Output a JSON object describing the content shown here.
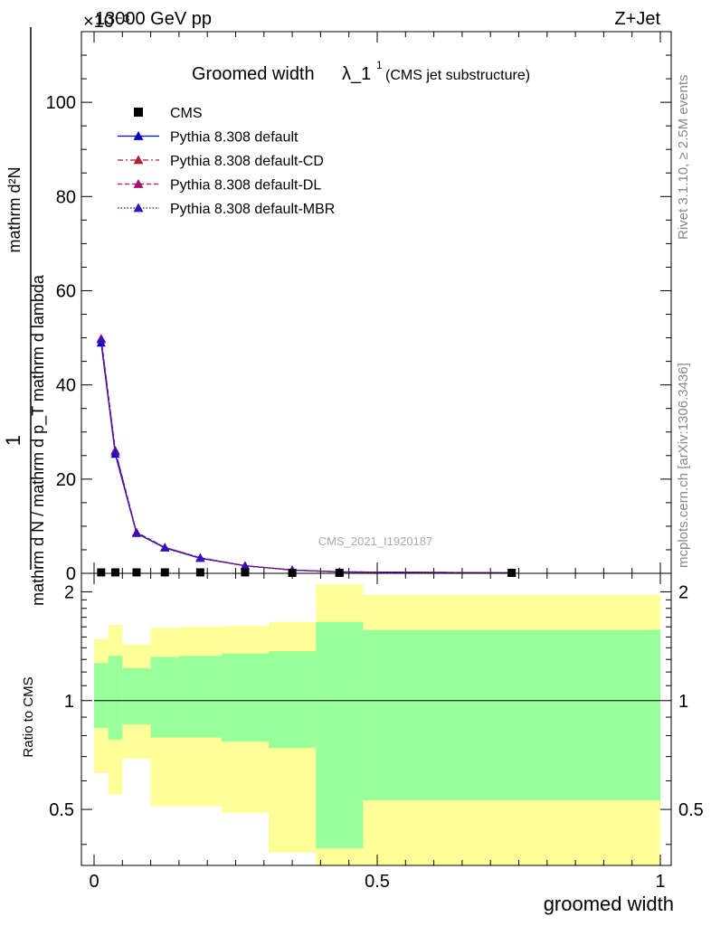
{
  "header": {
    "left": "13000 GeV pp",
    "right": "Z+Jet",
    "exponent": "×10⁻³"
  },
  "side_labels": {
    "rivet": "Rivet 3.1.10, ≥ 2.5M events",
    "mcplots": "mcplots.cern.ch [arXiv:1306.3436]"
  },
  "watermark": "CMS_2021_I1920187",
  "chart_data": [
    {
      "type": "line",
      "title": "Groomed width λ_1¹ (CMS jet substructure)",
      "title_main": "Groomed width",
      "title_lambda": "λ_1",
      "title_sup": "1",
      "title_paren": "(CMS jet substructure)",
      "ylabel_top": "1",
      "ylabel_top_den": "mathrm d N / mathrm d p_T mathrm d lambda",
      "ylabel_num": "mathrm d²N",
      "ylabel_den": "mathrm d p_T mathrm d p_T mathrm d lambda",
      "xlim": [
        0,
        1
      ],
      "ylim": [
        0,
        0.115
      ],
      "yticks": [
        0,
        20,
        40,
        60,
        80,
        100
      ],
      "ytick_scale": "×10⁻³",
      "legend_position": "top-left",
      "series": [
        {
          "name": "CMS",
          "kind": "data",
          "color": "#000000",
          "x": [
            0.0125,
            0.0375,
            0.075,
            0.125,
            0.1875,
            0.2667,
            0.35,
            0.4333,
            0.7375
          ],
          "y": [
            0.0002,
            0.0002,
            0.0002,
            0.0002,
            0.0002,
            0.0002,
            0.0001,
            0.0001,
            0.0001
          ]
        },
        {
          "name": "Pythia 8.308 default",
          "kind": "mc",
          "color": "#0000cc",
          "dash": "",
          "line": "solid",
          "x": [
            0.0125,
            0.0375,
            0.075,
            0.125,
            0.1875,
            0.2667,
            0.35,
            0.4333,
            0.7375
          ],
          "y": [
            0.0489,
            0.0253,
            0.0085,
            0.0054,
            0.0032,
            0.0016,
            0.0007,
            0.0003,
            0.0001
          ]
        },
        {
          "name": "Pythia 8.308 default-CD",
          "kind": "mc",
          "color": "#aa2233",
          "dash": "6,3,2,3",
          "line": "dashdot",
          "x": [
            0.0125,
            0.0375,
            0.075,
            0.125,
            0.1875,
            0.2667,
            0.35,
            0.4333,
            0.7375
          ],
          "y": [
            0.0498,
            0.026,
            0.0087,
            0.0055,
            0.0033,
            0.0016,
            0.0007,
            0.0003,
            0.0001
          ]
        },
        {
          "name": "Pythia 8.308 default-DL",
          "kind": "mc",
          "color": "#aa1166",
          "dash": "5,3",
          "line": "dashed",
          "x": [
            0.0125,
            0.0375,
            0.075,
            0.125,
            0.1875,
            0.2667,
            0.35,
            0.4333,
            0.7375
          ],
          "y": [
            0.0499,
            0.0261,
            0.0087,
            0.0055,
            0.0033,
            0.0016,
            0.0007,
            0.0003,
            0.0001
          ]
        },
        {
          "name": "Pythia 8.308 default-MBR",
          "kind": "mc",
          "color": "#3311bb",
          "dash": "1.5,2",
          "line": "dotted",
          "x": [
            0.0125,
            0.0375,
            0.075,
            0.125,
            0.1875,
            0.2667,
            0.35,
            0.4333,
            0.7375
          ],
          "y": [
            0.0496,
            0.0258,
            0.0086,
            0.0055,
            0.0033,
            0.0016,
            0.0007,
            0.0003,
            0.0001
          ]
        }
      ]
    },
    {
      "type": "area",
      "ylabel": "Ratio to CMS",
      "xlabel": "groomed width",
      "xlim": [
        0,
        1
      ],
      "ylim": [
        0.35,
        2.25
      ],
      "xticks": [
        0,
        0.5,
        1
      ],
      "xtick_labels": [
        "0",
        "0.5",
        "1"
      ],
      "yticks": [
        0.5,
        1,
        2
      ],
      "ytick_labels": [
        "0.5",
        "1",
        "2"
      ],
      "reference_line": 1,
      "bins": [
        {
          "lo": 0.0,
          "hi": 0.025,
          "stat_lo": 0.84,
          "stat_hi": 1.27,
          "tot_lo": 0.63,
          "tot_hi": 1.48
        },
        {
          "lo": 0.025,
          "hi": 0.05,
          "stat_lo": 0.78,
          "stat_hi": 1.33,
          "tot_lo": 0.55,
          "tot_hi": 1.62
        },
        {
          "lo": 0.05,
          "hi": 0.1,
          "stat_lo": 0.86,
          "stat_hi": 1.23,
          "tot_lo": 0.69,
          "tot_hi": 1.43
        },
        {
          "lo": 0.1,
          "hi": 0.15,
          "stat_lo": 0.79,
          "stat_hi": 1.32,
          "tot_lo": 0.51,
          "tot_hi": 1.59
        },
        {
          "lo": 0.15,
          "hi": 0.225,
          "stat_lo": 0.79,
          "stat_hi": 1.33,
          "tot_lo": 0.51,
          "tot_hi": 1.6
        },
        {
          "lo": 0.225,
          "hi": 0.3083,
          "stat_lo": 0.77,
          "stat_hi": 1.35,
          "tot_lo": 0.49,
          "tot_hi": 1.61
        },
        {
          "lo": 0.3083,
          "hi": 0.3917,
          "stat_lo": 0.74,
          "stat_hi": 1.37,
          "tot_lo": 0.38,
          "tot_hi": 1.65
        },
        {
          "lo": 0.3917,
          "hi": 0.475,
          "stat_lo": 0.39,
          "stat_hi": 1.65,
          "tot_lo": 0.1,
          "tot_hi": 2.1
        },
        {
          "lo": 0.475,
          "hi": 1.0,
          "stat_lo": 0.53,
          "stat_hi": 1.57,
          "tot_lo": 0.1,
          "tot_hi": 1.96
        }
      ],
      "stat_color": "#99ff99",
      "tot_color": "#ffff99"
    }
  ]
}
